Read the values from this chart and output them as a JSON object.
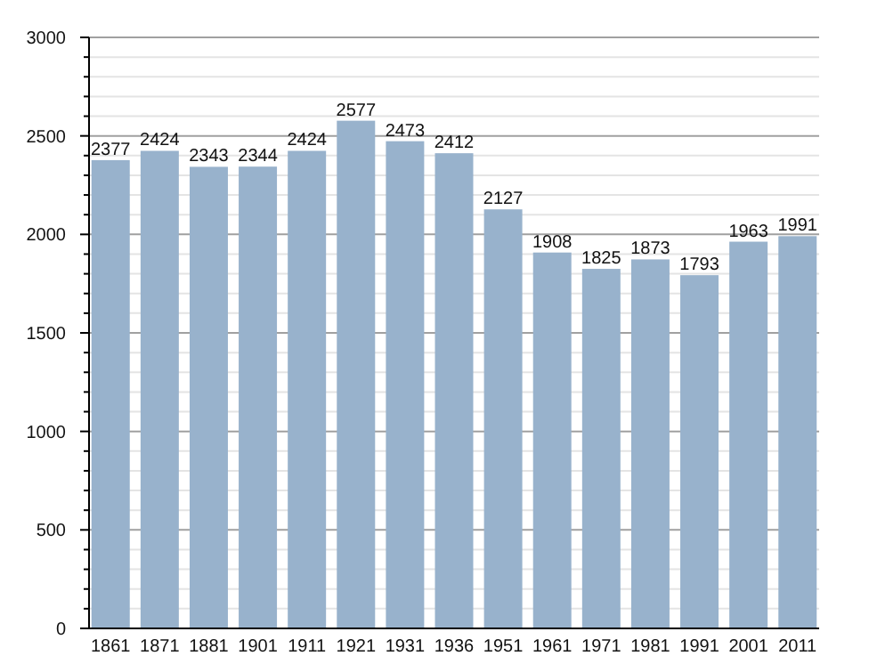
{
  "chart_data": {
    "type": "bar",
    "categories": [
      "1861",
      "1871",
      "1881",
      "1901",
      "1911",
      "1921",
      "1931",
      "1936",
      "1951",
      "1961",
      "1971",
      "1981",
      "1991",
      "2001",
      "2011"
    ],
    "values": [
      2377,
      2424,
      2343,
      2344,
      2424,
      2577,
      2473,
      2412,
      2127,
      1908,
      1825,
      1873,
      1793,
      1963,
      1991
    ],
    "color": "#98b2cc",
    "ylim": [
      0,
      3000
    ],
    "yticks": [
      0,
      {
        "value": 100,
        "label": null
      },
      {
        "value": 200,
        "label": null
      },
      {
        "value": 300,
        "label": null
      },
      {
        "value": 400,
        "label": null
      },
      500,
      {
        "value": 600,
        "label": null
      },
      {
        "value": 700,
        "label": null
      },
      {
        "value": 800,
        "label": null
      },
      {
        "value": 900,
        "label": null
      },
      1000,
      {
        "value": 1100,
        "label": null
      },
      {
        "value": 1200,
        "label": null
      },
      {
        "value": 1300,
        "label": null
      },
      {
        "value": 1400,
        "label": null
      },
      1500,
      {
        "value": 1600,
        "label": null
      },
      {
        "value": 1700,
        "label": null
      },
      {
        "value": 1800,
        "label": null
      },
      {
        "value": 1900,
        "label": null
      },
      2000,
      {
        "value": 2100,
        "label": null
      },
      {
        "value": 2200,
        "label": null
      },
      {
        "value": 2300,
        "label": null
      },
      {
        "value": 2400,
        "label": null
      },
      2500,
      {
        "value": 2600,
        "label": null
      },
      {
        "value": 2700,
        "label": null
      },
      {
        "value": 2800,
        "label": null
      },
      {
        "value": 2900,
        "label": null
      },
      3000
    ],
    "grid": true,
    "data_labels": true
  }
}
